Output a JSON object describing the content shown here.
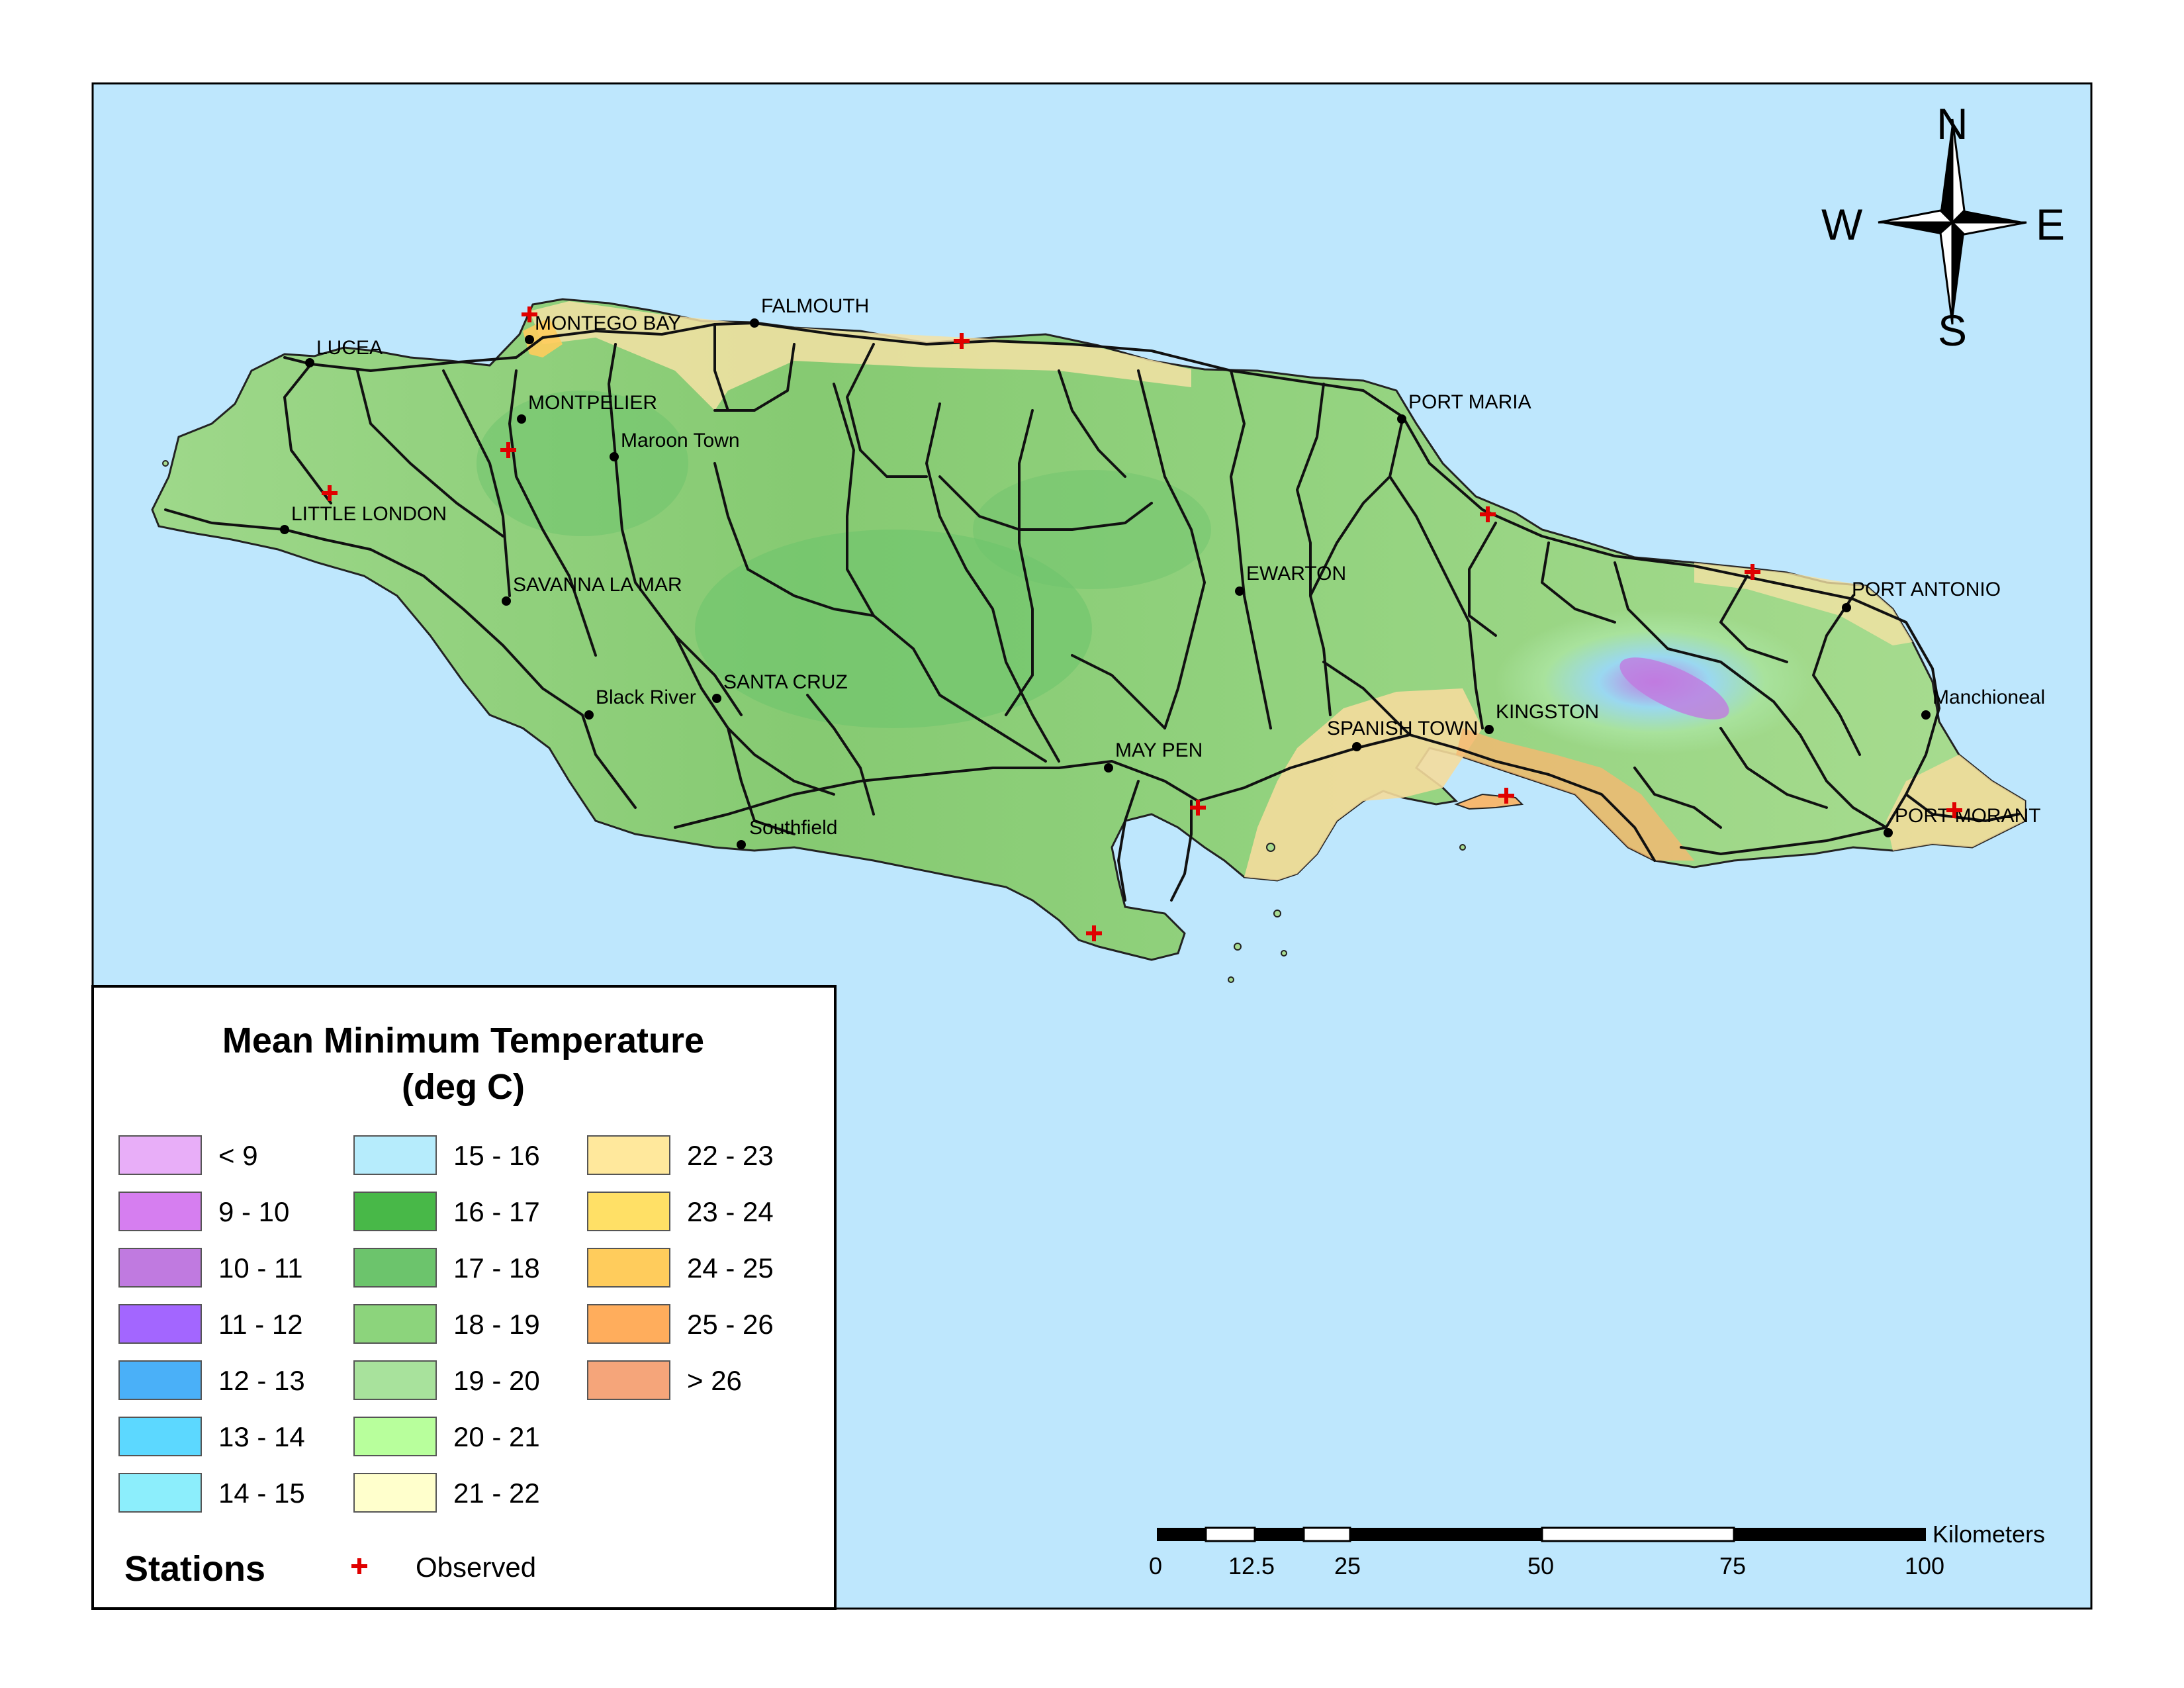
{
  "legend": {
    "title_line1": "Mean Minimum Temperature",
    "title_line2": "(deg C)",
    "classes": [
      {
        "label": "< 9",
        "color": "#e8aef8"
      },
      {
        "label": "9 - 10",
        "color": "#d67ef0"
      },
      {
        "label": "10 - 11",
        "color": "#c07ae0"
      },
      {
        "label": "11 - 12",
        "color": "#a366ff"
      },
      {
        "label": "12 - 13",
        "color": "#4ab0f8"
      },
      {
        "label": "13 - 14",
        "color": "#5cd8ff"
      },
      {
        "label": "14 - 15",
        "color": "#8ceefc"
      },
      {
        "label": "15 - 16",
        "color": "#b6ecfc"
      },
      {
        "label": "16 - 17",
        "color": "#48b848"
      },
      {
        "label": "17 - 18",
        "color": "#6cc46c"
      },
      {
        "label": "18 - 19",
        "color": "#8cd47c"
      },
      {
        "label": "19 - 20",
        "color": "#a8e29c"
      },
      {
        "label": "20 - 21",
        "color": "#b8ff9c"
      },
      {
        "label": "21 - 22",
        "color": "#ffffcc"
      },
      {
        "label": "22 - 23",
        "color": "#ffe89c"
      },
      {
        "label": "23 - 24",
        "color": "#ffe066"
      },
      {
        "label": "24 - 25",
        "color": "#ffcc5c"
      },
      {
        "label": "25 - 26",
        "color": "#ffad5c"
      },
      {
        "label": "> 26",
        "color": "#f5a57a"
      }
    ],
    "stations_label": "Stations",
    "observed_label": "Observed",
    "station_color": "#e00000"
  },
  "compass": {
    "n": "N",
    "s": "S",
    "e": "E",
    "w": "W"
  },
  "scale": {
    "unit": "Kilometers",
    "ticks": [
      "0",
      "12.5",
      "25",
      "50",
      "75",
      "100"
    ]
  },
  "towns": [
    "LUCEA",
    "MONTEGO BAY",
    "FALMOUTH",
    "MONTPELIER",
    "Maroon Town",
    "LITTLE LONDON",
    "SAVANNA LA MAR",
    "Black River",
    "SANTA CRUZ",
    "Southfield",
    "MAY PEN",
    "SPANISH TOWN",
    "KINGSTON",
    "EWARTON",
    "PORT MARIA",
    "PORT ANTONIO",
    "Manchioneal",
    "PORT MORANT"
  ],
  "colors": {
    "sea": "#bee7fd",
    "border": "#000000"
  }
}
